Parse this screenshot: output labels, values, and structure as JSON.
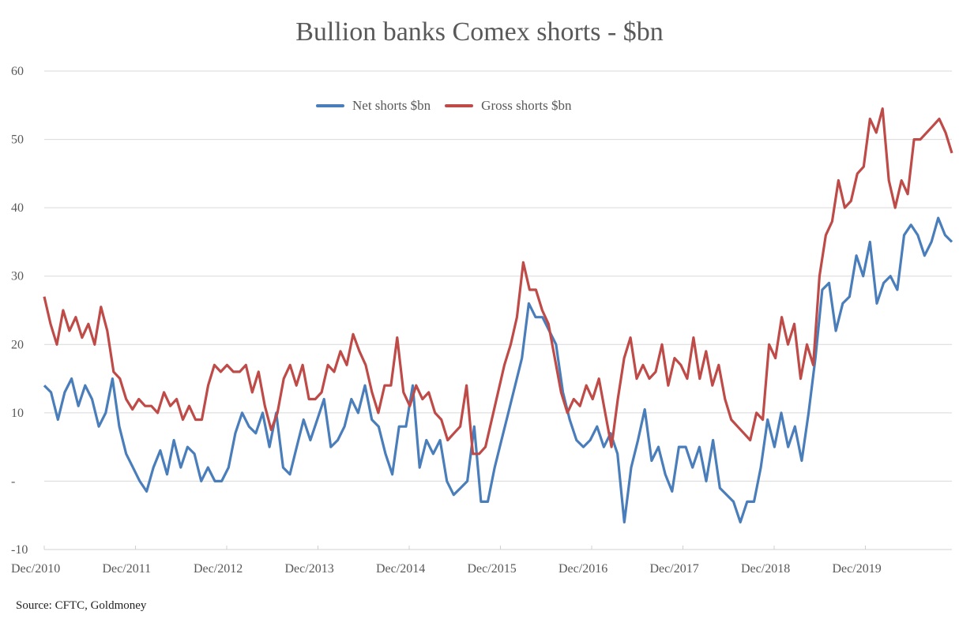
{
  "chart_data": {
    "type": "line",
    "title": "Bullion banks Comex shorts - $bn",
    "xlabel": "",
    "ylabel": "",
    "ylim": [
      -10,
      60
    ],
    "grid": true,
    "legend_position": "top-center",
    "y_ticks": [
      60,
      50,
      40,
      30,
      20,
      10,
      0,
      -10
    ],
    "y_tick_labels": [
      "60",
      "50",
      "40",
      "30",
      "20",
      "10",
      "-",
      "-10"
    ],
    "x_tick_labels": [
      "Dec/2010",
      "Dec/2011",
      "Dec/2012",
      "Dec/2013",
      "Dec/2014",
      "Dec/2015",
      "Dec/2016",
      "Dec/2017",
      "Dec/2018",
      "Dec/2019"
    ],
    "x_range": [
      "Dec/2010",
      "Dec/2020"
    ],
    "series": [
      {
        "name": "Net shorts $bn",
        "color": "#4a7ebb",
        "values": [
          14,
          13,
          9,
          13,
          15,
          11,
          14,
          12,
          8,
          10,
          15,
          8,
          4,
          2,
          0,
          -1.5,
          2,
          4.5,
          1,
          6,
          2,
          5,
          4,
          0,
          2,
          0,
          0,
          2,
          7,
          10,
          8,
          7,
          10,
          5,
          10,
          2,
          1,
          5,
          9,
          6,
          9,
          12,
          5,
          6,
          8,
          12,
          10,
          14,
          9,
          8,
          4,
          1,
          8,
          8,
          14,
          2,
          6,
          4,
          6,
          0,
          -2,
          -1,
          0,
          8,
          -3,
          -3,
          2,
          6,
          10,
          14,
          18,
          26,
          24,
          24,
          22,
          20,
          13,
          9,
          6,
          5,
          6,
          8,
          5,
          7,
          4,
          -6,
          2,
          6,
          10.5,
          3,
          5,
          1,
          -1.5,
          5,
          5,
          2,
          5,
          0,
          6,
          -1,
          -2,
          -3,
          -6,
          -3,
          -3,
          2,
          9,
          5,
          10,
          5,
          8,
          3,
          10,
          18,
          28,
          29,
          22,
          26,
          27,
          33,
          30,
          35,
          26,
          29,
          30,
          28,
          36,
          37.5,
          36,
          33,
          35,
          38.5,
          36,
          35
        ]
      },
      {
        "name": "Gross shorts $bn",
        "color": "#be4b48",
        "values": [
          27,
          23,
          20,
          25,
          22,
          24,
          21,
          23,
          20,
          25.5,
          22,
          16,
          15,
          12,
          10.5,
          12,
          11,
          11,
          10,
          13,
          11,
          12,
          9,
          11,
          9,
          9,
          14,
          17,
          16,
          17,
          16,
          16,
          17,
          13,
          16,
          11,
          7.5,
          10,
          15,
          17,
          14,
          17,
          12,
          12,
          13,
          17,
          16,
          19,
          17,
          21.5,
          19,
          17,
          13,
          10,
          14,
          14,
          21,
          13,
          11,
          14,
          12,
          13,
          10,
          9,
          6,
          7,
          8,
          14,
          4,
          4,
          5,
          9,
          13,
          17,
          20,
          24,
          32,
          28,
          28,
          25,
          23,
          18,
          13,
          10,
          12,
          11,
          14,
          12,
          15,
          10,
          5,
          12,
          18,
          21,
          15,
          17,
          15,
          16,
          20,
          14,
          18,
          17,
          15,
          21,
          15,
          19,
          14,
          17,
          12,
          9,
          8,
          7,
          6,
          10,
          9,
          20,
          18,
          24,
          20,
          23,
          15,
          20,
          17,
          30,
          36,
          38,
          44,
          40,
          41,
          45,
          46,
          53,
          51,
          54.5,
          44,
          40,
          44,
          42,
          50,
          50,
          51,
          52,
          53,
          51,
          48
        ]
      }
    ]
  },
  "source": "Source: CFTC, Goldmoney"
}
